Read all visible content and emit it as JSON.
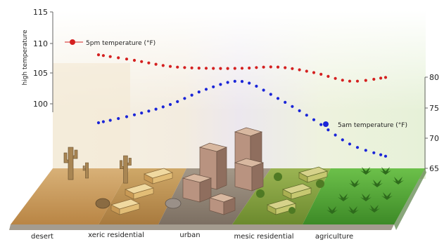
{
  "chart_data": {
    "type": "line",
    "ylabel_left": "high temperature",
    "ylim_left": [
      100,
      115
    ],
    "yticks_left": [
      "115",
      "110",
      "105",
      "100"
    ],
    "ylim_right": [
      65,
      80
    ],
    "yticks_right": [
      "80",
      "75",
      "70",
      "65"
    ],
    "categories": [
      "desert",
      "xeric residential",
      "urban",
      "mesic residential",
      "agriculture"
    ],
    "series": [
      {
        "name": "5pm temperature (°F)",
        "axis": "left",
        "color": "#d42020",
        "x": [
          0,
          0.5,
          1.0,
          1.5,
          2.0,
          2.5,
          3.0,
          3.5,
          4.0
        ],
        "values": [
          108,
          107.1,
          106.1,
          105.8,
          105.8,
          106,
          105.1,
          103.7,
          104.3
        ]
      },
      {
        "name": "5am temperature (°F)",
        "axis": "right",
        "color": "#1a25d8",
        "x": [
          0,
          0.5,
          1.0,
          1.5,
          2.0,
          2.5,
          3.0,
          3.5,
          4.0
        ],
        "values": [
          72.5,
          73.8,
          75.5,
          78.0,
          79.3,
          76.5,
          73.0,
          69.0,
          67.0
        ]
      }
    ]
  },
  "legend": {
    "pm_label": "5pm temperature (°F)",
    "am_label": "5am temperature (°F)"
  },
  "zones": [
    {
      "name": "desert",
      "color": "#c99a5a"
    },
    {
      "name": "xeric residential",
      "color": "#b8924f"
    },
    {
      "name": "urban",
      "color": "#8e8378"
    },
    {
      "name": "mesic residential",
      "color": "#7f9a3e"
    },
    {
      "name": "agriculture",
      "color": "#4f9a35"
    }
  ]
}
